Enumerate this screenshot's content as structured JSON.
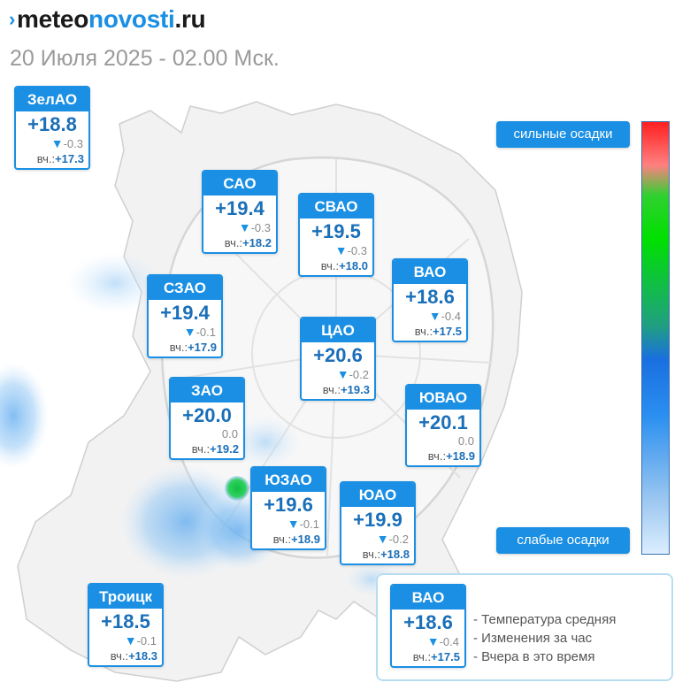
{
  "header": {
    "logo_prefix": "meteo",
    "logo_main": "novosti",
    "logo_suffix": ".ru",
    "subtitle": "20 Июля 2025 - 02.00 Мск."
  },
  "districts": [
    {
      "name": "ЗелАО",
      "temp": "+18.8",
      "change": "-0.3",
      "trend": "down",
      "yesterday_label": "вч.:",
      "yesterday": "+17.3"
    },
    {
      "name": "САО",
      "temp": "+19.4",
      "change": "-0.3",
      "trend": "down",
      "yesterday_label": "вч.:",
      "yesterday": "+18.2"
    },
    {
      "name": "СВАО",
      "temp": "+19.5",
      "change": "-0.3",
      "trend": "down",
      "yesterday_label": "вч.:",
      "yesterday": "+18.0"
    },
    {
      "name": "ВАО",
      "temp": "+18.6",
      "change": "-0.4",
      "trend": "down",
      "yesterday_label": "вч.:",
      "yesterday": "+17.5"
    },
    {
      "name": "СЗАО",
      "temp": "+19.4",
      "change": "-0.1",
      "trend": "down",
      "yesterday_label": "вч.:",
      "yesterday": "+17.9"
    },
    {
      "name": "ЦАО",
      "temp": "+20.6",
      "change": "-0.2",
      "trend": "down",
      "yesterday_label": "вч.:",
      "yesterday": "+19.3"
    },
    {
      "name": "ЗАО",
      "temp": "+20.0",
      "change": "0.0",
      "trend": "none",
      "yesterday_label": "вч.:",
      "yesterday": "+19.2"
    },
    {
      "name": "ЮВАО",
      "temp": "+20.1",
      "change": "0.0",
      "trend": "none",
      "yesterday_label": "вч.:",
      "yesterday": "+18.9"
    },
    {
      "name": "ЮЗАО",
      "temp": "+19.6",
      "change": "-0.1",
      "trend": "down",
      "yesterday_label": "вч.:",
      "yesterday": "+18.9"
    },
    {
      "name": "ЮАО",
      "temp": "+19.9",
      "change": "-0.2",
      "trend": "down",
      "yesterday_label": "вч.:",
      "yesterday": "+18.8"
    },
    {
      "name": "Троицк",
      "temp": "+18.5",
      "change": "-0.1",
      "trend": "down",
      "yesterday_label": "вч.:",
      "yesterday": "+18.3"
    }
  ],
  "scale": {
    "top_label": "сильные осадки",
    "bottom_label": "слабые осадки",
    "colors": [
      "#ff2020",
      "#00e000",
      "#1a6fe0",
      "#dceeff"
    ]
  },
  "legend": {
    "sample": {
      "name": "ВАО",
      "temp": "+18.6",
      "change": "-0.4",
      "trend": "down",
      "yesterday_label": "вч.:",
      "yesterday": "+17.5"
    },
    "lines": [
      "- Температура средняя",
      "- Изменения за час",
      "- Вчера в это время"
    ]
  },
  "colors": {
    "accent": "#1a8fe3",
    "temp_text": "#1a6fb8"
  }
}
